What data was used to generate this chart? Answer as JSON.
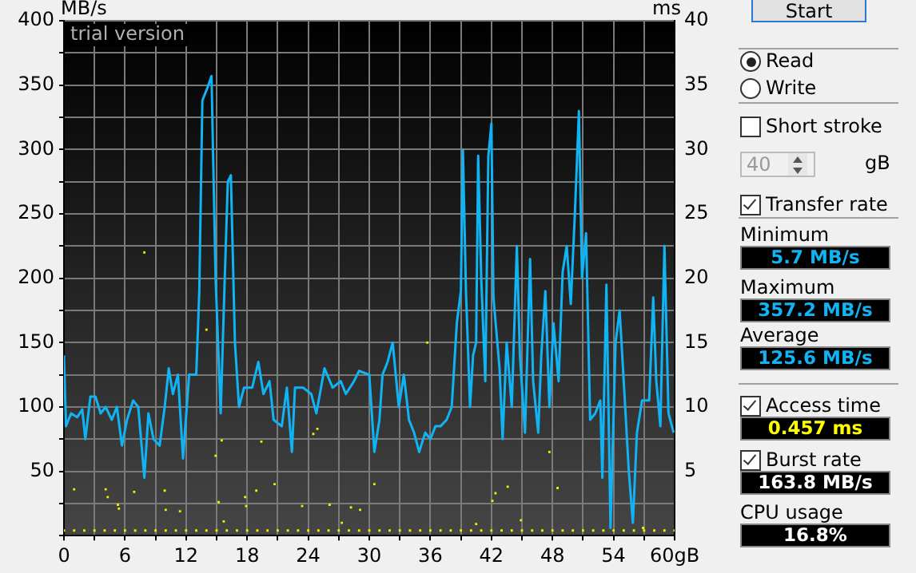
{
  "chart_data": {
    "type": "line",
    "ylabel": "MB/s",
    "y2label": "ms",
    "annotations": [
      "trial version",
      "Start",
      "Read",
      "Write",
      "Short stroke",
      "40",
      "gB",
      "Transfer rate",
      "Minimum",
      "5.7 MB/s",
      "Maximum",
      "357.2 MB/s",
      "Average",
      "125.6 MB/s",
      "Access time",
      "0.457 ms",
      "Burst rate",
      "163.8 MB/s",
      "CPU usage",
      "16.8%"
    ],
    "xlim": [
      0,
      60
    ],
    "ylim": [
      0,
      400
    ],
    "y2lim": [
      0,
      40
    ],
    "xticks": [
      0,
      {
        "value": 3,
        "label": null
      },
      6,
      {
        "value": 9,
        "label": null
      },
      12,
      {
        "value": 15,
        "label": null
      },
      18,
      {
        "value": 21,
        "label": null
      },
      24,
      {
        "value": 27,
        "label": null
      },
      30,
      {
        "value": 33,
        "label": null
      },
      36,
      {
        "value": 39,
        "label": null
      },
      42,
      {
        "value": 45,
        "label": null
      },
      48,
      {
        "value": 51,
        "label": null
      },
      54,
      {
        "value": 57,
        "label": null
      },
      {
        "value": 60,
        "label": "60gB"
      }
    ],
    "yticks": [
      {
        "value": 0,
        "label": null
      },
      {
        "value": 25,
        "label": null
      },
      50,
      {
        "value": 75,
        "label": null
      },
      100,
      {
        "value": 125,
        "label": null
      },
      150,
      {
        "value": 175,
        "label": null
      },
      200,
      {
        "value": 225,
        "label": null
      },
      250,
      {
        "value": 275,
        "label": null
      },
      300,
      {
        "value": 325,
        "label": null
      },
      350,
      {
        "value": 375,
        "label": null
      },
      400
    ],
    "y2ticks": [
      5,
      10,
      15,
      20,
      25,
      30,
      35,
      40
    ],
    "grid": true,
    "line_style": "solid",
    "series": [
      {
        "color": "#10b4f4",
        "marker": "none",
        "x": [
          0,
          0.2,
          0.7,
          1.3,
          1.8,
          2.1,
          2.6,
          3.1,
          3.6,
          4.1,
          4.7,
          5.2,
          5.7,
          6.2,
          6.8,
          7.3,
          7.9,
          8.3,
          8.8,
          9.4,
          9.9,
          10.3,
          10.7,
          11.2,
          11.7,
          12.3,
          13.0,
          13.3,
          13.6,
          14.1,
          14.5,
          14.9,
          15.4,
          15.8,
          16.1,
          16.4,
          16.8,
          17.2,
          17.7,
          18.5,
          19.1,
          19.6,
          20.2,
          20.6,
          21.4,
          21.9,
          22.4,
          22.7,
          23.5,
          24.3,
          24.8,
          25.6,
          26.4,
          27.2,
          27.7,
          28.5,
          29.0,
          30.0,
          30.5,
          31.0,
          31.3,
          31.8,
          32.3,
          32.9,
          33.4,
          33.9,
          34.4,
          34.9,
          35.5,
          36.0,
          36.5,
          37.0,
          37.6,
          38.1,
          38.6,
          39.0,
          39.2,
          39.5,
          39.9,
          40.2,
          40.5,
          40.7,
          41.0,
          41.4,
          41.7,
          42.0,
          42.2,
          42.8,
          43.1,
          43.5,
          44.0,
          44.5,
          44.8,
          45.3,
          45.8,
          46.1,
          46.6,
          46.9,
          47.3,
          47.7,
          48.1,
          48.6,
          49.0,
          49.4,
          49.8,
          50.2,
          50.6,
          50.9,
          51.3,
          51.7,
          52.2,
          52.7,
          52.9,
          53.3,
          53.7,
          54.2,
          54.6,
          55.0,
          55.5,
          55.9,
          56.3,
          56.8,
          57.5,
          57.9,
          58.2,
          58.6,
          59.0,
          59.4,
          59.9
        ],
        "values": [
          140,
          85,
          95,
          92,
          98,
          75,
          108,
          108,
          95,
          100,
          90,
          100,
          70,
          90,
          105,
          100,
          45,
          95,
          75,
          70,
          100,
          130,
          110,
          125,
          60,
          125,
          125,
          190,
          338,
          348,
          357,
          200,
          95,
          200,
          275,
          280,
          150,
          100,
          115,
          115,
          135,
          110,
          120,
          90,
          85,
          115,
          65,
          115,
          115,
          110,
          95,
          130,
          115,
          120,
          110,
          120,
          128,
          125,
          65,
          90,
          125,
          135,
          150,
          100,
          125,
          90,
          80,
          65,
          80,
          75,
          85,
          85,
          90,
          100,
          165,
          190,
          300,
          190,
          100,
          140,
          150,
          295,
          200,
          120,
          295,
          320,
          185,
          130,
          75,
          150,
          100,
          225,
          140,
          80,
          215,
          120,
          80,
          140,
          190,
          100,
          165,
          120,
          205,
          225,
          180,
          250,
          330,
          200,
          235,
          90,
          95,
          105,
          45,
          195,
          6,
          150,
          175,
          120,
          50,
          10,
          80,
          105,
          105,
          185,
          120,
          85,
          225,
          95,
          80
        ]
      },
      {
        "type": "scatter",
        "axis": "y2",
        "color": "#f0f000",
        "marker": "square",
        "x": [
          0,
          1,
          2,
          3,
          4,
          5,
          6,
          7,
          8,
          9,
          10,
          11,
          12,
          13,
          14,
          15,
          16,
          17,
          18,
          19,
          20,
          21,
          22,
          23,
          24,
          25,
          26,
          27,
          28,
          29,
          30,
          31,
          32,
          33,
          34,
          35,
          36,
          37,
          38,
          39,
          40,
          41,
          42,
          43,
          44,
          45,
          46,
          47,
          48,
          49,
          50,
          51,
          52,
          53,
          54,
          55,
          56,
          57,
          58,
          59,
          60,
          7.9,
          14,
          1,
          4.1,
          4.3,
          5.3,
          5.4,
          6.9,
          9.9,
          10,
          11.4,
          14.9,
          15.5,
          15.2,
          15.7,
          17.8,
          17.9,
          18.9,
          19.4,
          20.7,
          23.4,
          24.5,
          24.9,
          26.1,
          27.3,
          28.2,
          29.1,
          30.5,
          35.7,
          40.5,
          42.1,
          42.4,
          43.6,
          44.9,
          47.7,
          48.5,
          56.9
        ],
        "values": [
          0.4,
          0.4,
          0.4,
          0.4,
          0.4,
          0.4,
          0.4,
          0.4,
          0.4,
          0.4,
          0.4,
          0.4,
          0.4,
          0.4,
          0.4,
          0.4,
          0.4,
          0.4,
          0.4,
          0.4,
          0.4,
          0.4,
          0.4,
          0.4,
          0.4,
          0.4,
          0.4,
          0.4,
          0.4,
          0.4,
          0.4,
          0.4,
          0.4,
          0.4,
          0.4,
          0.4,
          0.4,
          0.4,
          0.4,
          0.4,
          0.4,
          0.4,
          0.4,
          0.4,
          0.4,
          0.4,
          0.4,
          0.4,
          0.4,
          0.4,
          0.4,
          0.4,
          0.4,
          0.4,
          0.4,
          0.4,
          0.4,
          0.4,
          0.4,
          0.4,
          0.4,
          22,
          16,
          3.6,
          3.6,
          3,
          2.4,
          2.1,
          3.4,
          3.5,
          2,
          1.9,
          6.2,
          7.4,
          2.6,
          1.1,
          3,
          2.3,
          3.5,
          7.3,
          4,
          2.3,
          7.9,
          8.3,
          2.4,
          1,
          2.2,
          2,
          4,
          15,
          0.9,
          2.7,
          3.3,
          3.8,
          1.2,
          6.5,
          3.7,
          0.6
        ]
      }
    ]
  }
}
